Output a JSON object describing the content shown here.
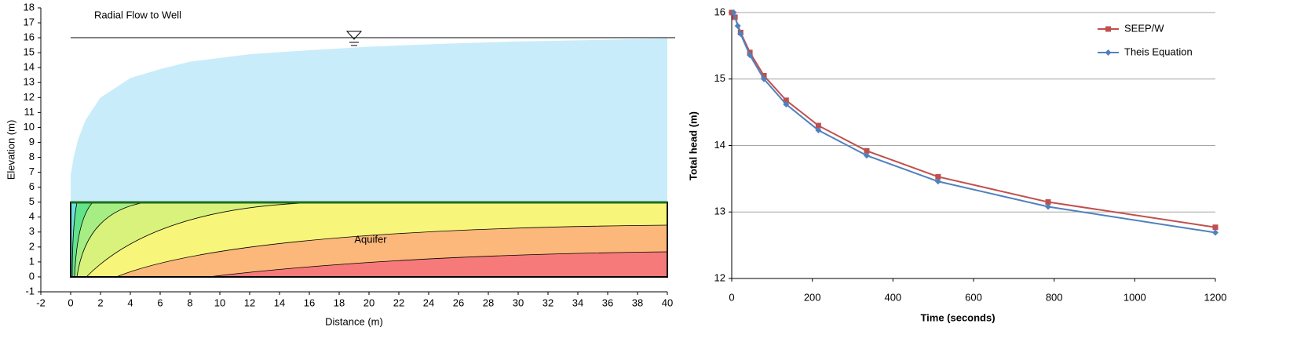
{
  "chart_data": [
    {
      "type": "area",
      "title": "Radial Flow to Well",
      "annotation": "Aquifer",
      "xlabel": "Distance (m)",
      "ylabel": "Elevation (m)",
      "x": [
        0,
        0.2,
        0.5,
        1,
        2,
        4,
        6,
        8,
        12,
        15,
        20,
        25,
        30,
        35,
        40
      ],
      "values": [
        6.8,
        8,
        9.2,
        10.5,
        12,
        13.3,
        13.9,
        14.4,
        14.9,
        15.1,
        15.4,
        15.6,
        15.75,
        15.85,
        15.95
      ],
      "color": "#c9ecfa",
      "xlim": [
        -2,
        40
      ],
      "xticks": [
        -2,
        0,
        2,
        4,
        6,
        8,
        10,
        12,
        14,
        16,
        18,
        20,
        22,
        24,
        26,
        28,
        30,
        32,
        34,
        36,
        38,
        40
      ],
      "ylim": [
        -1,
        18
      ],
      "yticks": [
        -1,
        0,
        1,
        2,
        3,
        4,
        5,
        6,
        7,
        8,
        9,
        10,
        11,
        12,
        13,
        14,
        15,
        16,
        17,
        18
      ]
    },
    {
      "type": "line",
      "xlabel": "Time (seconds)",
      "ylabel": "Total head (m)",
      "xlim": [
        0,
        1200
      ],
      "xticks": [
        0,
        200,
        400,
        600,
        800,
        1000,
        1200
      ],
      "ylim": [
        12,
        16
      ],
      "yticks": [
        12,
        13,
        14,
        15,
        16
      ],
      "grid": true,
      "legend": "upper right",
      "series": [
        {
          "name": "SEEP/W",
          "color": "#c0504d",
          "marker": "square",
          "x": [
            0,
            8,
            22,
            45,
            80,
            135,
            215,
            335,
            512,
            785,
            1200
          ],
          "values": [
            16,
            15.93,
            15.7,
            15.4,
            15.05,
            14.68,
            14.3,
            13.92,
            13.53,
            13.15,
            12.77
          ]
        },
        {
          "name": "Theis Equation",
          "color": "#4f81bd",
          "marker": "diamond",
          "x": [
            5,
            15,
            22,
            45,
            80,
            135,
            215,
            335,
            512,
            785,
            1200
          ],
          "values": [
            16,
            15.8,
            15.68,
            15.36,
            15.0,
            14.62,
            14.23,
            13.85,
            13.46,
            13.08,
            12.69
          ]
        }
      ]
    }
  ]
}
